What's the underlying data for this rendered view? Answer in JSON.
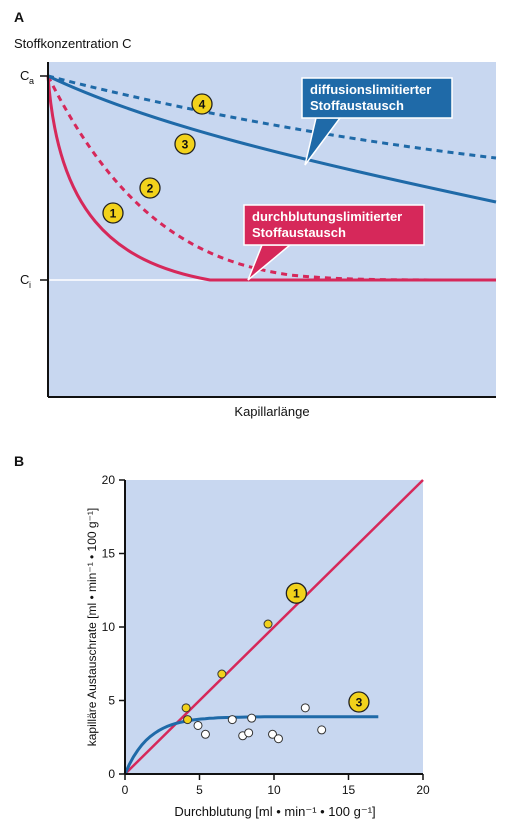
{
  "colors": {
    "panel_bg": "#c8d7f0",
    "red": "#d6285a",
    "blue": "#1f6aa8",
    "yellow": "#f2d21b",
    "axis": "#111111",
    "white_line": "#ffffff"
  },
  "chart_data": [
    {
      "panel_label": "A",
      "type": "line",
      "ylabel": "Stoffkonzentration C",
      "xlabel": "Kapillarlänge",
      "y_ticks": [
        {
          "label": "C",
          "sub": "a",
          "value": 1.0
        },
        {
          "label": "C",
          "sub": "i",
          "value": 0.0
        }
      ],
      "ylim": [
        -0.6,
        1.0
      ],
      "xlim": [
        0,
        1
      ],
      "grid": false,
      "series": [
        {
          "marker": "1",
          "color": "red",
          "style": "solid",
          "kind": "fast"
        },
        {
          "marker": "2",
          "color": "red",
          "style": "dashed",
          "kind": "medium"
        },
        {
          "marker": "3",
          "color": "blue",
          "style": "solid",
          "kind": "slow"
        },
        {
          "marker": "4",
          "color": "blue",
          "style": "dashed",
          "kind": "slower"
        }
      ],
      "callouts": [
        {
          "lines": [
            "diffusionslimitierter",
            "Stoffaustausch"
          ],
          "color": "blue"
        },
        {
          "lines": [
            "durchblutungslimitierter",
            "Stoffaustausch"
          ],
          "color": "red"
        }
      ]
    },
    {
      "panel_label": "B",
      "type": "scatter",
      "xlabel": "Durchblutung [ml • min⁻¹ • 100 g⁻¹]",
      "ylabel": "kapilläre Austauschrate [ml • min⁻¹ • 100 g⁻¹]",
      "xlim": [
        0,
        20
      ],
      "ylim": [
        0,
        20
      ],
      "x_ticks": [
        0,
        5,
        10,
        15,
        20
      ],
      "y_ticks": [
        0,
        5,
        10,
        15,
        20
      ],
      "grid": false,
      "series": [
        {
          "marker": "1",
          "color": "red",
          "kind": "line",
          "x": [
            0,
            20
          ],
          "y": [
            0,
            20
          ]
        },
        {
          "marker": "3",
          "color": "blue",
          "kind": "saturating",
          "x_range": [
            0,
            17
          ],
          "plateau": 3.9
        }
      ],
      "points_yellow": [
        [
          4.1,
          4.5
        ],
        [
          4.2,
          3.7
        ],
        [
          6.5,
          6.8
        ],
        [
          9.6,
          10.2
        ]
      ],
      "points_white": [
        [
          4.9,
          3.3
        ],
        [
          5.4,
          2.7
        ],
        [
          7.2,
          3.7
        ],
        [
          7.9,
          2.6
        ],
        [
          8.3,
          2.8
        ],
        [
          8.5,
          3.8
        ],
        [
          9.9,
          2.7
        ],
        [
          10.3,
          2.4
        ],
        [
          12.1,
          4.5
        ],
        [
          13.2,
          3.0
        ]
      ]
    }
  ]
}
